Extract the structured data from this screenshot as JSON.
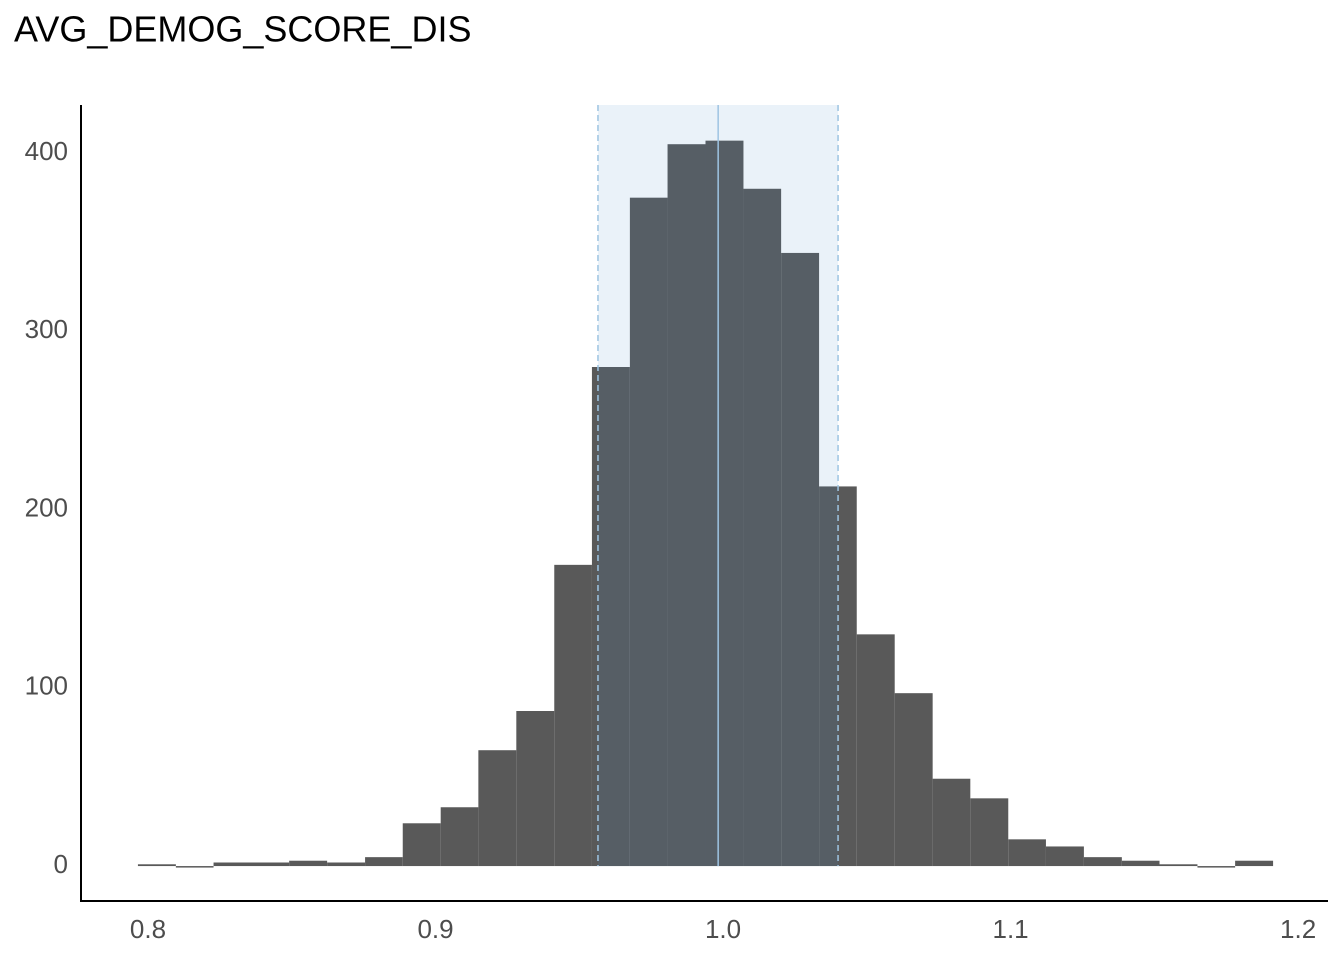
{
  "chart_data": {
    "type": "histogram",
    "title": "AVG_DEMOG_SCORE_DIS",
    "bins": [
      0.7965,
      0.8097,
      0.8228,
      0.836,
      0.8491,
      0.8623,
      0.8755,
      0.8886,
      0.9018,
      0.9149,
      0.9281,
      0.9413,
      0.9544,
      0.9676,
      0.9807,
      0.9939,
      1.0071,
      1.0202,
      1.0334,
      1.0465,
      1.0597,
      1.0729,
      1.086,
      1.0992,
      1.1123,
      1.1255,
      1.1387,
      1.1518,
      1.165,
      1.1781,
      1.1913
    ],
    "values": [
      1,
      0,
      2,
      2,
      3,
      2,
      5,
      24,
      33,
      65,
      87,
      169,
      280,
      375,
      405,
      407,
      380,
      344,
      213,
      130,
      97,
      49,
      38,
      15,
      11,
      5,
      3,
      1,
      0,
      3
    ],
    "color": "#595959",
    "band": [
      0.9565,
      1.04
    ],
    "band_color": "#3d85c6",
    "center_line": 0.9983,
    "line_color": "#9ec4e2",
    "xlim": [
      0.7767,
      1.2104
    ],
    "xticks": [
      0.8,
      0.9,
      {
        "value": 1,
        "label": "1.0"
      },
      1.1,
      1.2
    ],
    "ylim": [
      -19.6,
      427
    ],
    "yticks": [
      0,
      100,
      200,
      300,
      400
    ],
    "grid": false
  }
}
